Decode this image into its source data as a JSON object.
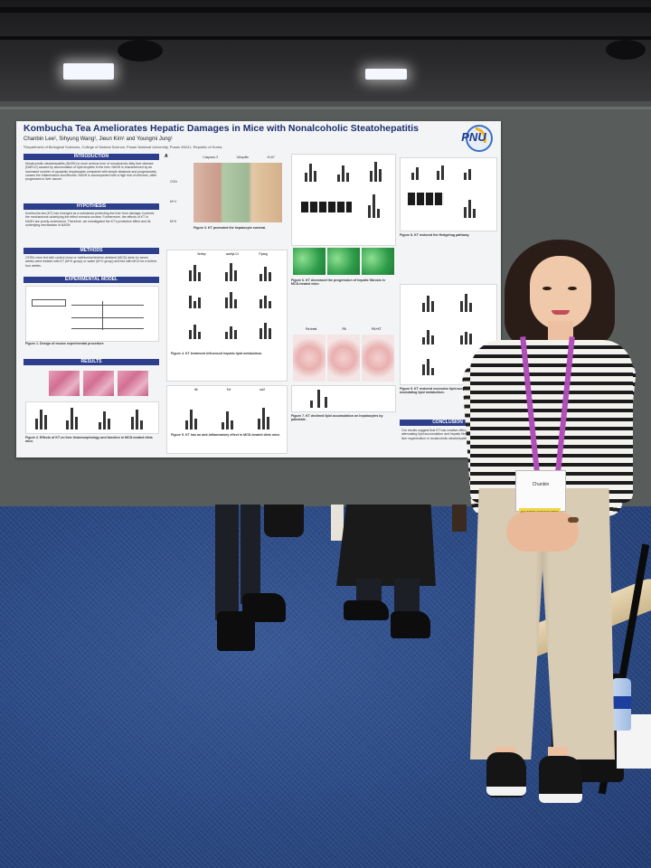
{
  "poster": {
    "title": "Kombucha Tea Ameliorates Hepatic Damages in Mice with Nonalcoholic Steatohepatitis",
    "authors": "Chanbin Lee¹, Sihyung Wang¹, Jieun Kim¹ and Youngmi Jung¹",
    "affiliation": "¹Department of Biological Sciences, College of Natural Science, Pusan National University, Pusan 46241, Republic of Korea",
    "logo_text": "PNU",
    "sections": {
      "introduction": "INTRODUCTION",
      "hypothesis": "HYPOTHESIS",
      "methods": "METHODS",
      "experimental_model": "EXPERIMENTAL MODEL",
      "results": "RESULTS",
      "conclusion": "CONCLUSION"
    },
    "intro_text": "Nonalcoholic steatohepatitis (NASH) is more serious form of nonalcoholic fatty liver disease (NAFLD) caused by accumulation of lipid droplets in the liver. NASH is characterized by an increased number of apoptotic hepatocytes compared with simple steatosis and progressively causes the inflammation and fibrosis. NASH is accompanied with a high risk of cirrhosis, often progresses to liver cancer.",
    "hypothesis_text": "Kombucha tea (KT) has emerged as a substance protecting the liver from damage; however, the mechanisms underlying the effect remains unclear. Furthermore, the effects of KT in NASH are poorly understood. Therefore, we investigated the KT's protective effect and its underlying mechanism in NASH.",
    "methods_text": "C57BL mice fed with control chow or methionine/choline-deficient (MCD) diets for seven weeks were treated with KT (M+K group) or water (M+V group) and fed with MCD for a further four weeks.",
    "conclusion_text": "Our results suggest that KT has curative effects on NASH by attenuating lipid accumulation and hepatic fibrosis, contributing to liver regeneration in nonalcoholic steatohepatitis.",
    "fig_captions": [
      "Figure 1. Design of mouse experimental procedure",
      "Figure 2. Effects of KT on liver histomorphology and function in MCD-treated diets mice.",
      "Figure 3. KT promoted the hepatocyte survival.",
      "Figure 4. KT treatment influenced hepatic lipid metabolism.",
      "Figure 5. KT has an anti-inflammatory effect in MCD-treated diets mice.",
      "Figure 6. KT decreased the progression of hepatic fibrosis in MCD-treated mice.",
      "Figure 7. KT declined lipid accumulation on hepatocytes by palmitate.",
      "Figure 8. KT restored the Hedgehog pathway.",
      "Figure 9. KT restored excessive lipid accumulation by modulating lipid metabolism."
    ],
    "chart_labels": {
      "fig3": [
        "Caspase-3",
        "Ubiquitin",
        "Ki-67"
      ],
      "groups": [
        "CON",
        "M+V",
        "M+K"
      ],
      "fig4": [
        "Srebp",
        "acetyl-Cr",
        "Pparg"
      ],
      "fig5": [
        "Il6",
        "Tnf",
        "ccl2"
      ],
      "fig7": [
        "Pa treat",
        "PA",
        "PA+KT"
      ]
    }
  },
  "badge": {
    "name": "Chanbin",
    "strip": "POSTER PRESENTER"
  },
  "colors": {
    "title_blue": "#1e2e6e",
    "section_blue": "#2c3e8c",
    "lanyard": "#b04fb8",
    "carpet": "#2c4a84",
    "board": "#585d5b"
  }
}
